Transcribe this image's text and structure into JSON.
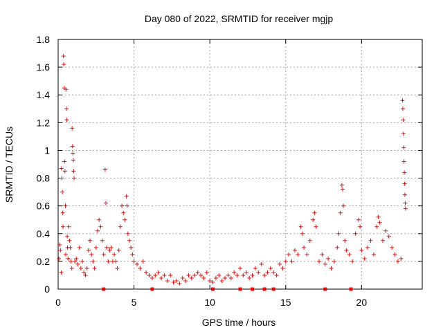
{
  "chart_data": {
    "type": "scatter",
    "title": "Day 080 of 2022, SRMTID for receiver mgjp",
    "xlabel": "GPS time / hours",
    "ylabel": "SRMTID / TECUs",
    "xlim": [
      0,
      24
    ],
    "ylim": [
      0,
      1.8
    ],
    "x_ticks": [
      0,
      5,
      10,
      15,
      20
    ],
    "y_ticks": [
      0,
      0.2,
      0.4,
      0.6,
      0.8,
      1,
      1.2,
      1.4,
      1.6,
      1.8
    ],
    "x_tick_labels": [
      "0",
      "5",
      "10",
      "15",
      "20"
    ],
    "y_tick_labels": [
      "0",
      "0.2",
      "0.4",
      "0.6",
      "0.8",
      "1",
      "1.2",
      "1.4",
      "1.6",
      "1.8"
    ],
    "grid": true,
    "marker": "+",
    "marker_color": "#ff0000",
    "series": [
      {
        "name": "SRMTID",
        "points": [
          [
            0.05,
            0.22
          ],
          [
            0.1,
            0.32
          ],
          [
            0.15,
            0.28
          ],
          [
            0.2,
            0.12
          ],
          [
            0.22,
            0.87
          ],
          [
            0.25,
            0.8
          ],
          [
            0.28,
            0.7
          ],
          [
            0.3,
            0.55
          ],
          [
            0.32,
            0.45
          ],
          [
            0.35,
            1.68
          ],
          [
            0.37,
            1.62
          ],
          [
            0.4,
            1.45
          ],
          [
            0.42,
            0.92
          ],
          [
            0.45,
            0.85
          ],
          [
            0.48,
            0.6
          ],
          [
            0.5,
            0.25
          ],
          [
            0.52,
            1.44
          ],
          [
            0.55,
            1.3
          ],
          [
            0.57,
            1.22
          ],
          [
            0.6,
            0.38
          ],
          [
            0.62,
            0.3
          ],
          [
            0.65,
            0.22
          ],
          [
            0.7,
            0.45
          ],
          [
            0.75,
            0.35
          ],
          [
            0.8,
            0.3
          ],
          [
            0.85,
            0.2
          ],
          [
            0.9,
            0.15
          ],
          [
            0.92,
            1.16
          ],
          [
            0.95,
            1.03
          ],
          [
            0.97,
            0.98
          ],
          [
            1.0,
            0.93
          ],
          [
            1.02,
            0.85
          ],
          [
            1.05,
            0.8
          ],
          [
            1.1,
            0.2
          ],
          [
            1.2,
            0.22
          ],
          [
            1.3,
            0.18
          ],
          [
            1.4,
            0.3
          ],
          [
            1.5,
            0.15
          ],
          [
            1.6,
            0.2
          ],
          [
            1.7,
            0.12
          ],
          [
            1.8,
            0.1
          ],
          [
            1.9,
            0.15
          ],
          [
            2.0,
            0.28
          ],
          [
            2.1,
            0.35
          ],
          [
            2.2,
            0.25
          ],
          [
            2.3,
            0.2
          ],
          [
            2.4,
            0.15
          ],
          [
            2.5,
            0.3
          ],
          [
            2.6,
            0.42
          ],
          [
            2.7,
            0.5
          ],
          [
            2.8,
            0.45
          ],
          [
            2.9,
            0.35
          ],
          [
            3.0,
            0.25
          ],
          [
            3.1,
            0.86
          ],
          [
            3.15,
            0.62
          ],
          [
            3.2,
            0.3
          ],
          [
            3.3,
            0.2
          ],
          [
            3.4,
            0.28
          ],
          [
            3.5,
            0.3
          ],
          [
            3.6,
            0.2
          ],
          [
            3.7,
            0.25
          ],
          [
            3.8,
            0.2
          ],
          [
            3.9,
            0.15
          ],
          [
            4.0,
            0.28
          ],
          [
            4.1,
            0.45
          ],
          [
            4.2,
            0.6
          ],
          [
            4.3,
            0.55
          ],
          [
            4.4,
            0.5
          ],
          [
            4.5,
            0.67
          ],
          [
            4.55,
            0.6
          ],
          [
            4.6,
            0.4
          ],
          [
            4.7,
            0.35
          ],
          [
            4.8,
            0.3
          ],
          [
            4.9,
            0.25
          ],
          [
            5.0,
            0.2
          ],
          [
            5.2,
            0.18
          ],
          [
            5.4,
            0.15
          ],
          [
            5.6,
            0.2
          ],
          [
            5.8,
            0.12
          ],
          [
            6.0,
            0.1
          ],
          [
            6.2,
            0.08
          ],
          [
            6.4,
            0.1
          ],
          [
            6.6,
            0.12
          ],
          [
            6.8,
            0.08
          ],
          [
            7.0,
            0.1
          ],
          [
            7.2,
            0.06
          ],
          [
            7.4,
            0.1
          ],
          [
            7.6,
            0.05
          ],
          [
            7.8,
            0.06
          ],
          [
            8.0,
            0.04
          ],
          [
            8.2,
            0.08
          ],
          [
            8.4,
            0.06
          ],
          [
            8.6,
            0.1
          ],
          [
            8.8,
            0.08
          ],
          [
            9.0,
            0.1
          ],
          [
            9.2,
            0.12
          ],
          [
            9.4,
            0.1
          ],
          [
            9.6,
            0.08
          ],
          [
            9.8,
            0.12
          ],
          [
            10.0,
            0.06
          ],
          [
            10.2,
            0.05
          ],
          [
            10.4,
            0.08
          ],
          [
            10.6,
            0.1
          ],
          [
            10.8,
            0.06
          ],
          [
            11.0,
            0.08
          ],
          [
            11.2,
            0.1
          ],
          [
            11.4,
            0.08
          ],
          [
            11.6,
            0.12
          ],
          [
            11.8,
            0.1
          ],
          [
            12.0,
            0.15
          ],
          [
            12.2,
            0.1
          ],
          [
            12.4,
            0.12
          ],
          [
            12.6,
            0.08
          ],
          [
            12.8,
            0.1
          ],
          [
            13.0,
            0.15
          ],
          [
            13.2,
            0.12
          ],
          [
            13.4,
            0.18
          ],
          [
            13.6,
            0.1
          ],
          [
            13.8,
            0.12
          ],
          [
            14.0,
            0.15
          ],
          [
            14.2,
            0.12
          ],
          [
            14.4,
            0.1
          ],
          [
            14.6,
            0.18
          ],
          [
            14.8,
            0.15
          ],
          [
            15.0,
            0.2
          ],
          [
            15.2,
            0.25
          ],
          [
            15.4,
            0.2
          ],
          [
            15.6,
            0.28
          ],
          [
            15.8,
            0.25
          ],
          [
            16.0,
            0.45
          ],
          [
            16.1,
            0.4
          ],
          [
            16.2,
            0.3
          ],
          [
            16.4,
            0.25
          ],
          [
            16.6,
            0.35
          ],
          [
            16.8,
            0.5
          ],
          [
            16.9,
            0.55
          ],
          [
            17.0,
            0.45
          ],
          [
            17.2,
            0.2
          ],
          [
            17.4,
            0.25
          ],
          [
            17.6,
            0.18
          ],
          [
            17.8,
            0.22
          ],
          [
            18.0,
            0.15
          ],
          [
            18.2,
            0.2
          ],
          [
            18.4,
            0.3
          ],
          [
            18.5,
            0.4
          ],
          [
            18.6,
            0.55
          ],
          [
            18.7,
            0.75
          ],
          [
            18.75,
            0.72
          ],
          [
            18.8,
            0.6
          ],
          [
            18.9,
            0.35
          ],
          [
            19.0,
            0.28
          ],
          [
            19.2,
            0.25
          ],
          [
            19.4,
            0.2
          ],
          [
            19.6,
            0.4
          ],
          [
            19.8,
            0.5
          ],
          [
            19.9,
            0.45
          ],
          [
            20.0,
            0.28
          ],
          [
            20.2,
            0.22
          ],
          [
            20.4,
            0.3
          ],
          [
            20.6,
            0.35
          ],
          [
            20.8,
            0.25
          ],
          [
            21.0,
            0.45
          ],
          [
            21.1,
            0.52
          ],
          [
            21.2,
            0.48
          ],
          [
            21.4,
            0.35
          ],
          [
            21.6,
            0.42
          ],
          [
            21.8,
            0.38
          ],
          [
            22.0,
            0.3
          ],
          [
            22.2,
            0.25
          ],
          [
            22.4,
            0.2
          ],
          [
            22.6,
            0.22
          ],
          [
            22.7,
            1.36
          ],
          [
            22.72,
            1.3
          ],
          [
            22.74,
            1.22
          ],
          [
            22.76,
            1.12
          ],
          [
            22.78,
            1.02
          ],
          [
            22.8,
            0.92
          ],
          [
            22.82,
            0.84
          ],
          [
            22.84,
            0.76
          ],
          [
            22.86,
            0.68
          ],
          [
            22.88,
            0.62
          ],
          [
            22.9,
            0.58
          ]
        ]
      }
    ],
    "zero_markers": [
      3.0,
      6.2,
      10.2,
      12.0,
      12.8,
      13.6,
      14.2,
      17.6,
      19.3
    ]
  }
}
